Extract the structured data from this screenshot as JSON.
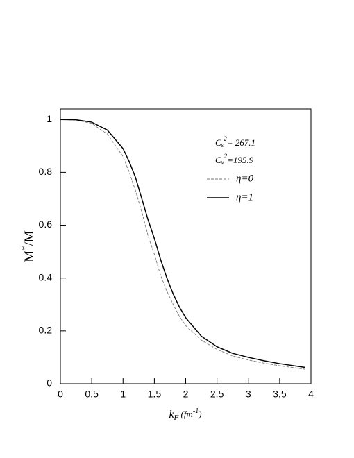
{
  "chart_data": {
    "type": "line",
    "ylabel": [
      "M",
      "*",
      "/M"
    ],
    "xlabel": [
      "k",
      "F",
      "  (fm",
      "-1",
      ")"
    ],
    "annotations": [
      [
        "C",
        "s",
        "2",
        "= 267.1"
      ],
      [
        "C",
        "v",
        "2",
        "=195.9"
      ]
    ],
    "x": [
      0,
      0.25,
      0.5,
      0.75,
      1,
      1.1,
      1.2,
      1.3,
      1.4,
      1.5,
      1.6,
      1.7,
      1.8,
      1.9,
      2,
      2.25,
      2.5,
      2.75,
      3,
      3.25,
      3.5,
      3.9
    ],
    "series": [
      {
        "name": "η=0",
        "color": "#777777",
        "dash": true,
        "values": [
          1,
          0.998,
          0.985,
          0.945,
          0.86,
          0.8,
          0.73,
          0.65,
          0.56,
          0.49,
          0.41,
          0.35,
          0.3,
          0.255,
          0.22,
          0.165,
          0.13,
          0.105,
          0.09,
          0.078,
          0.068,
          0.055
        ]
      },
      {
        "name": "η=1",
        "color": "#000000",
        "dash": false,
        "values": [
          1,
          0.999,
          0.99,
          0.96,
          0.89,
          0.84,
          0.78,
          0.7,
          0.62,
          0.55,
          0.47,
          0.4,
          0.34,
          0.29,
          0.25,
          0.18,
          0.14,
          0.115,
          0.1,
          0.087,
          0.076,
          0.062
        ]
      }
    ],
    "xlim": [
      0,
      4
    ],
    "ylim": [
      0,
      1.04
    ],
    "xticks": [
      0,
      0.5,
      1,
      1.5,
      2,
      2.5,
      3,
      3.5,
      4
    ],
    "yticks": [
      0,
      0.2,
      0.4,
      0.6,
      0.8,
      1
    ]
  }
}
